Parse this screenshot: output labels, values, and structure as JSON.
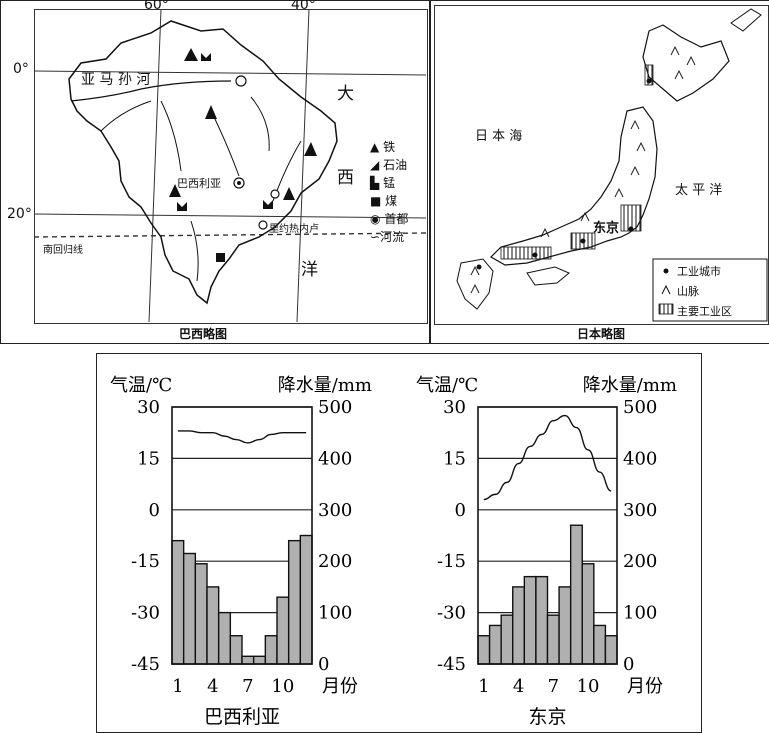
{
  "brazil_map": {
    "caption": "巴西略图",
    "lon_labels": [
      "60°",
      "40°"
    ],
    "lat_labels": [
      "0°",
      "20°"
    ],
    "river_name": "亚 马 孙 河",
    "ocean_chars": [
      "大",
      "西",
      "洋"
    ],
    "capital_label": "巴西利亚",
    "rio_label": "里约热内卢",
    "tropic_label": "南回归线",
    "legend": [
      {
        "icon": "iron-icon",
        "label": "铁"
      },
      {
        "icon": "oil-icon",
        "label": "石油"
      },
      {
        "icon": "manganese-icon",
        "label": "锰"
      },
      {
        "icon": "coal-icon",
        "label": "煤"
      },
      {
        "icon": "capital-icon",
        "label": "首都"
      },
      {
        "icon": "river-icon",
        "label": "河流"
      }
    ]
  },
  "japan_map": {
    "caption": "日本略图",
    "sea_label": "日 本 海",
    "ocean_label": "太 平 洋",
    "city_label": "东京",
    "legend": [
      {
        "icon": "industrial-city-icon",
        "label": "工业城市"
      },
      {
        "icon": "mountain-icon",
        "label": "山脉"
      },
      {
        "icon": "industrial-zone-icon",
        "label": "主要工业区"
      }
    ]
  },
  "chart_data": [
    {
      "type": "bar",
      "title": "巴西利亚",
      "ylabel": "气温/℃",
      "y2label": "降水量/mm",
      "xlabel": "月份",
      "categories": [
        1,
        2,
        3,
        4,
        5,
        6,
        7,
        8,
        9,
        10,
        11,
        12
      ],
      "xtick_labels": [
        "1",
        "4",
        "7",
        "10"
      ],
      "temp_ticks": [
        "30",
        "15",
        "0",
        "-15",
        "-30",
        "-45"
      ],
      "precip_ticks": [
        "500",
        "400",
        "300",
        "200",
        "100",
        "0"
      ],
      "ylim": [
        -45,
        30
      ],
      "y2lim": [
        0,
        500
      ],
      "series": [
        {
          "kind": "bar",
          "values": [
            240,
            215,
            195,
            150,
            100,
            55,
            15,
            15,
            55,
            130,
            240,
            250
          ]
        },
        {
          "kind": "line",
          "values": [
            23,
            23,
            22.5,
            22.5,
            21.5,
            20.5,
            19.5,
            20.5,
            22,
            22.5,
            22.5,
            22.5
          ]
        }
      ]
    },
    {
      "type": "bar",
      "title": "东京",
      "ylabel": "气温/℃",
      "y2label": "降水量/mm",
      "xlabel": "月份",
      "categories": [
        1,
        2,
        3,
        4,
        5,
        6,
        7,
        8,
        9,
        10,
        11,
        12
      ],
      "xtick_labels": [
        "1",
        "4",
        "7",
        "10"
      ],
      "temp_ticks": [
        "30",
        "15",
        "0",
        "-15",
        "-30",
        "-45"
      ],
      "precip_ticks": [
        "500",
        "400",
        "300",
        "200",
        "100",
        "0"
      ],
      "ylim": [
        -45,
        30
      ],
      "y2lim": [
        0,
        500
      ],
      "series": [
        {
          "kind": "bar",
          "values": [
            55,
            75,
            95,
            150,
            170,
            170,
            95,
            150,
            270,
            195,
            75,
            55
          ]
        },
        {
          "kind": "line",
          "values": [
            3,
            4.5,
            8,
            13.5,
            18.5,
            22,
            26,
            27.5,
            24,
            17.5,
            11,
            5.5
          ]
        }
      ]
    }
  ]
}
